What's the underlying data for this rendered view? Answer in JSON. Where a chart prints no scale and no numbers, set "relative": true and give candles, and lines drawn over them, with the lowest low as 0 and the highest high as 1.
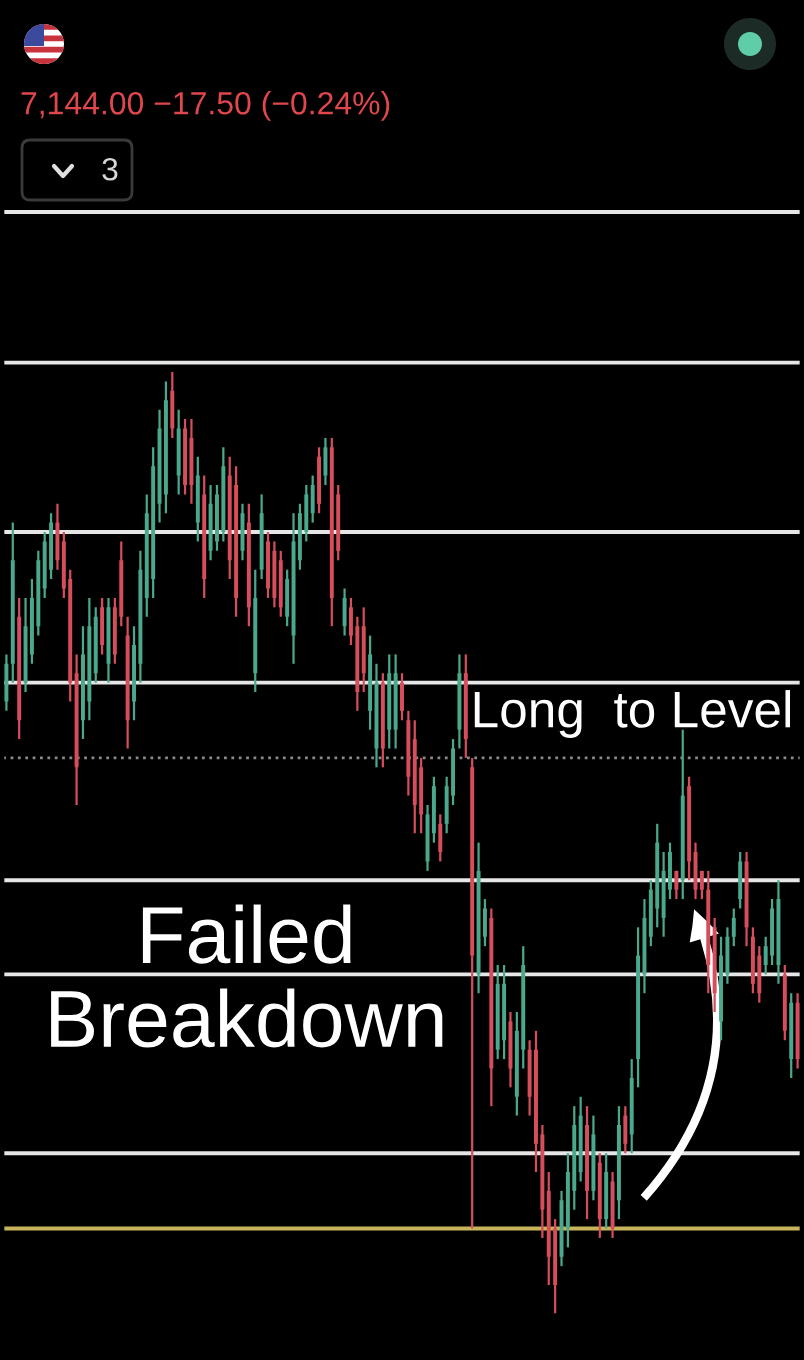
{
  "chart_data": {
    "type": "candlestick",
    "relative": true,
    "subtitle": "7,144.00 −17.50 (−0.24%)",
    "annotations": [
      "3",
      "Long  to Level",
      "Failed\nBreakdown"
    ],
    "categories": [
      null,
      null,
      null,
      null,
      null,
      null,
      null,
      null,
      null,
      null,
      null,
      null,
      null,
      null,
      null,
      null,
      null,
      null,
      null,
      null,
      null,
      null,
      null,
      null,
      null,
      null,
      null,
      null,
      null,
      null,
      null,
      null,
      null,
      null,
      null,
      null,
      null,
      null,
      null,
      null,
      null,
      null,
      null,
      null,
      null,
      null,
      null,
      null,
      null,
      null,
      null,
      null,
      null,
      null,
      null,
      null,
      null,
      null,
      null,
      null,
      null,
      null,
      null,
      null,
      null,
      null,
      null,
      null,
      null,
      null,
      null,
      null,
      null,
      null,
      null,
      null,
      null,
      null,
      null,
      null,
      null,
      null,
      null,
      null,
      null,
      null,
      null,
      null,
      null,
      null,
      null,
      null,
      null,
      null,
      null,
      null,
      null,
      null,
      null,
      null,
      null,
      null,
      null,
      null,
      null,
      null,
      null,
      null,
      null,
      null,
      null,
      null,
      null,
      null,
      null,
      null,
      null,
      null,
      null,
      null,
      null,
      null,
      null,
      null,
      null
    ],
    "ohlc": [
      [
        0.65,
        0.7,
        0.64,
        0.69
      ],
      [
        0.69,
        0.84,
        0.67,
        0.8
      ],
      [
        0.74,
        0.76,
        0.61,
        0.63
      ],
      [
        0.67,
        0.76,
        0.66,
        0.73
      ],
      [
        0.7,
        0.78,
        0.69,
        0.76
      ],
      [
        0.73,
        0.81,
        0.72,
        0.8
      ],
      [
        0.77,
        0.83,
        0.76,
        0.82
      ],
      [
        0.79,
        0.85,
        0.78,
        0.84
      ],
      [
        0.84,
        0.86,
        0.79,
        0.8
      ],
      [
        0.82,
        0.83,
        0.76,
        0.77
      ],
      [
        0.78,
        0.79,
        0.65,
        0.67
      ],
      [
        0.68,
        0.7,
        0.54,
        0.58
      ],
      [
        0.63,
        0.73,
        0.61,
        0.7
      ],
      [
        0.65,
        0.76,
        0.63,
        0.73
      ],
      [
        0.68,
        0.75,
        0.67,
        0.74
      ],
      [
        0.75,
        0.76,
        0.7,
        0.71
      ],
      [
        0.69,
        0.76,
        0.67,
        0.75
      ],
      [
        0.75,
        0.76,
        0.69,
        0.7
      ],
      [
        0.8,
        0.82,
        0.73,
        0.74
      ],
      [
        0.72,
        0.74,
        0.6,
        0.63
      ],
      [
        0.65,
        0.73,
        0.63,
        0.71
      ],
      [
        0.69,
        0.81,
        0.67,
        0.79
      ],
      [
        0.76,
        0.87,
        0.74,
        0.85
      ],
      [
        0.78,
        0.92,
        0.76,
        0.9
      ],
      [
        0.86,
        0.96,
        0.84,
        0.94
      ],
      [
        0.87,
        0.99,
        0.85,
        0.97
      ],
      [
        0.98,
        1.0,
        0.93,
        0.94
      ],
      [
        0.89,
        0.96,
        0.87,
        0.94
      ],
      [
        0.94,
        0.95,
        0.87,
        0.88
      ],
      [
        0.93,
        0.95,
        0.86,
        0.88
      ],
      [
        0.84,
        0.91,
        0.82,
        0.89
      ],
      [
        0.87,
        0.89,
        0.76,
        0.78
      ],
      [
        0.81,
        0.88,
        0.8,
        0.86
      ],
      [
        0.82,
        0.88,
        0.81,
        0.87
      ],
      [
        0.83,
        0.92,
        0.82,
        0.9
      ],
      [
        0.89,
        0.91,
        0.78,
        0.8
      ],
      [
        0.88,
        0.9,
        0.74,
        0.76
      ],
      [
        0.81,
        0.86,
        0.8,
        0.85
      ],
      [
        0.84,
        0.86,
        0.73,
        0.75
      ],
      [
        0.68,
        0.79,
        0.66,
        0.76
      ],
      [
        0.79,
        0.87,
        0.78,
        0.85
      ],
      [
        0.82,
        0.83,
        0.76,
        0.77
      ],
      [
        0.81,
        0.82,
        0.75,
        0.76
      ],
      [
        0.8,
        0.81,
        0.74,
        0.75
      ],
      [
        0.74,
        0.79,
        0.73,
        0.78
      ],
      [
        0.72,
        0.85,
        0.69,
        0.82
      ],
      [
        0.8,
        0.86,
        0.79,
        0.85
      ],
      [
        0.83,
        0.88,
        0.82,
        0.87
      ],
      [
        0.85,
        0.89,
        0.84,
        0.88
      ],
      [
        0.91,
        0.92,
        0.85,
        0.86
      ],
      [
        0.89,
        0.93,
        0.88,
        0.92
      ],
      [
        0.92,
        0.93,
        0.73,
        0.76
      ],
      [
        0.87,
        0.88,
        0.8,
        0.81
      ],
      [
        0.73,
        0.77,
        0.72,
        0.76
      ],
      [
        0.75,
        0.76,
        0.71,
        0.72
      ],
      [
        0.73,
        0.74,
        0.64,
        0.66
      ],
      [
        0.73,
        0.75,
        0.66,
        0.68
      ],
      [
        0.64,
        0.72,
        0.62,
        0.7
      ],
      [
        0.6,
        0.69,
        0.58,
        0.67
      ],
      [
        0.67,
        0.68,
        0.58,
        0.6
      ],
      [
        0.62,
        0.7,
        0.6,
        0.68
      ],
      [
        0.62,
        0.7,
        0.6,
        0.68
      ],
      [
        0.67,
        0.68,
        0.63,
        0.64
      ],
      [
        0.63,
        0.64,
        0.55,
        0.57
      ],
      [
        0.61,
        0.63,
        0.51,
        0.54
      ],
      [
        0.58,
        0.59,
        0.51,
        0.53
      ],
      [
        0.48,
        0.54,
        0.47,
        0.53
      ],
      [
        0.51,
        0.57,
        0.5,
        0.56
      ],
      [
        0.52,
        0.53,
        0.48,
        0.49
      ],
      [
        0.52,
        0.57,
        0.51,
        0.56
      ],
      [
        0.55,
        0.61,
        0.54,
        0.6
      ],
      [
        0.62,
        0.7,
        0.6,
        0.68
      ],
      [
        0.68,
        0.7,
        0.59,
        0.61
      ],
      [
        0.58,
        0.59,
        0.09,
        0.38
      ],
      [
        0.36,
        0.5,
        0.34,
        0.47
      ],
      [
        0.4,
        0.44,
        0.39,
        0.43
      ],
      [
        0.42,
        0.43,
        0.22,
        0.26
      ],
      [
        0.28,
        0.37,
        0.27,
        0.35
      ],
      [
        0.29,
        0.37,
        0.27,
        0.35
      ],
      [
        0.31,
        0.32,
        0.24,
        0.26
      ],
      [
        0.23,
        0.32,
        0.21,
        0.3
      ],
      [
        0.28,
        0.39,
        0.26,
        0.37
      ],
      [
        0.28,
        0.29,
        0.21,
        0.23
      ],
      [
        0.28,
        0.3,
        0.15,
        0.18
      ],
      [
        0.19,
        0.2,
        0.08,
        0.11
      ],
      [
        0.13,
        0.15,
        0.03,
        0.06
      ],
      [
        0.09,
        0.1,
        0.0,
        0.03
      ],
      [
        0.06,
        0.13,
        0.05,
        0.12
      ],
      [
        0.09,
        0.17,
        0.07,
        0.15
      ],
      [
        0.13,
        0.22,
        0.11,
        0.2
      ],
      [
        0.15,
        0.23,
        0.14,
        0.21
      ],
      [
        0.2,
        0.22,
        0.1,
        0.13
      ],
      [
        0.13,
        0.21,
        0.12,
        0.19
      ],
      [
        0.16,
        0.17,
        0.08,
        0.1
      ],
      [
        0.1,
        0.17,
        0.09,
        0.15
      ],
      [
        0.14,
        0.15,
        0.08,
        0.09
      ],
      [
        0.12,
        0.22,
        0.1,
        0.2
      ],
      [
        0.21,
        0.22,
        0.17,
        0.18
      ],
      [
        0.19,
        0.27,
        0.17,
        0.25
      ],
      [
        0.27,
        0.41,
        0.24,
        0.38
      ],
      [
        0.36,
        0.44,
        0.34,
        0.42
      ],
      [
        0.4,
        0.46,
        0.39,
        0.45
      ],
      [
        0.43,
        0.52,
        0.41,
        0.5
      ],
      [
        0.42,
        0.49,
        0.4,
        0.47
      ],
      [
        0.45,
        0.5,
        0.44,
        0.49
      ],
      [
        0.47,
        0.47,
        0.44,
        0.45
      ],
      [
        0.46,
        0.62,
        0.44,
        0.55
      ],
      [
        0.56,
        0.57,
        0.46,
        0.48
      ],
      [
        0.49,
        0.5,
        0.44,
        0.45
      ],
      [
        0.47,
        0.47,
        0.44,
        0.45
      ],
      [
        0.45,
        0.47,
        0.34,
        0.37
      ],
      [
        0.41,
        0.42,
        0.32,
        0.34
      ],
      [
        0.31,
        0.4,
        0.29,
        0.38
      ],
      [
        0.36,
        0.41,
        0.35,
        0.4
      ],
      [
        0.4,
        0.43,
        0.39,
        0.42
      ],
      [
        0.44,
        0.49,
        0.43,
        0.48
      ],
      [
        0.48,
        0.49,
        0.39,
        0.41
      ],
      [
        0.4,
        0.41,
        0.34,
        0.35
      ],
      [
        0.38,
        0.39,
        0.33,
        0.34
      ],
      [
        0.37,
        0.4,
        0.36,
        0.39
      ],
      [
        0.38,
        0.44,
        0.37,
        0.43
      ],
      [
        0.37,
        0.46,
        0.35,
        0.44
      ],
      [
        0.36,
        0.37,
        0.29,
        0.3
      ],
      [
        0.27,
        0.34,
        0.25,
        0.33
      ],
      [
        0.33,
        0.34,
        0.26,
        0.27
      ]
    ],
    "colors": [
      "#4aa88c",
      "#4aa88c",
      "#d64d5c",
      "#4aa88c",
      "#4aa88c",
      "#4aa88c",
      "#4aa88c",
      "#4aa88c",
      "#d64d5c",
      "#d64d5c",
      "#d64d5c",
      "#d64d5c",
      "#4aa88c",
      "#4aa88c",
      "#4aa88c",
      "#d64d5c",
      "#4aa88c",
      "#d64d5c",
      "#d64d5c",
      "#d64d5c",
      "#4aa88c",
      "#4aa88c",
      "#4aa88c",
      "#4aa88c",
      "#4aa88c",
      "#4aa88c",
      "#d64d5c",
      "#4aa88c",
      "#d64d5c",
      "#d64d5c",
      "#4aa88c",
      "#d64d5c",
      "#4aa88c",
      "#4aa88c",
      "#4aa88c",
      "#d64d5c",
      "#d64d5c",
      "#4aa88c",
      "#d64d5c",
      "#4aa88c",
      "#4aa88c",
      "#d64d5c",
      "#d64d5c",
      "#d64d5c",
      "#4aa88c",
      "#4aa88c",
      "#4aa88c",
      "#4aa88c",
      "#4aa88c",
      "#d64d5c",
      "#4aa88c",
      "#d64d5c",
      "#d64d5c",
      "#4aa88c",
      "#d64d5c",
      "#d64d5c",
      "#d64d5c",
      "#4aa88c",
      "#4aa88c",
      "#d64d5c",
      "#4aa88c",
      "#4aa88c",
      "#d64d5c",
      "#d64d5c",
      "#d64d5c",
      "#d64d5c",
      "#4aa88c",
      "#4aa88c",
      "#d64d5c",
      "#4aa88c",
      "#4aa88c",
      "#4aa88c",
      "#d64d5c",
      "#d64d5c",
      "#4aa88c",
      "#4aa88c",
      "#d64d5c",
      "#4aa88c",
      "#4aa88c",
      "#d64d5c",
      "#4aa88c",
      "#4aa88c",
      "#d64d5c",
      "#d64d5c",
      "#d64d5c",
      "#d64d5c",
      "#d64d5c",
      "#4aa88c",
      "#4aa88c",
      "#4aa88c",
      "#4aa88c",
      "#d64d5c",
      "#4aa88c",
      "#d64d5c",
      "#4aa88c",
      "#d64d5c",
      "#4aa88c",
      "#d64d5c",
      "#4aa88c",
      "#4aa88c",
      "#4aa88c",
      "#4aa88c",
      "#4aa88c",
      "#4aa88c",
      "#4aa88c",
      "#d64d5c",
      "#4aa88c",
      "#d64d5c",
      "#d64d5c",
      "#d64d5c",
      "#d64d5c",
      "#d64d5c",
      "#4aa88c",
      "#4aa88c",
      "#4aa88c",
      "#4aa88c",
      "#d64d5c",
      "#d64d5c",
      "#d64d5c",
      "#4aa88c",
      "#4aa88c",
      "#4aa88c",
      "#d64d5c",
      "#4aa88c",
      "#d64d5c"
    ],
    "ref_lines": [
      {
        "axis": "y",
        "value": 1.17,
        "color": "#e6e6e6"
      },
      {
        "axis": "y",
        "value": 1.01,
        "color": "#e6e6e6"
      },
      {
        "axis": "y",
        "value": 0.83,
        "color": "#e6e6e6"
      },
      {
        "axis": "y",
        "value": 0.67,
        "color": "#e6e6e6"
      },
      {
        "axis": "y",
        "value": 0.59,
        "color": "#8a8a8a",
        "line_style": "dotted"
      },
      {
        "axis": "y",
        "value": 0.46,
        "color": "#e6e6e6"
      },
      {
        "axis": "y",
        "value": 0.36,
        "color": "#e6e6e6"
      },
      {
        "axis": "y",
        "value": 0.17,
        "color": "#e6e6e6"
      },
      {
        "axis": "y",
        "value": 0.09,
        "color": "#c8b45a"
      }
    ]
  }
}
